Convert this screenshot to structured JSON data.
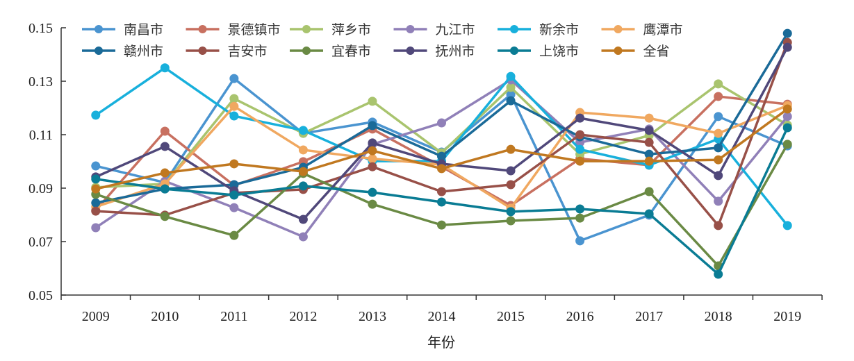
{
  "chart_data": {
    "type": "line",
    "title": "",
    "xlabel": "年份",
    "ylabel": "",
    "ylim": [
      0.05,
      0.15
    ],
    "yticks": [
      "0.05",
      "0.07",
      "0.09",
      "0.11",
      "0.13",
      "0.15"
    ],
    "categories": [
      "2009",
      "2010",
      "2011",
      "2012",
      "2013",
      "2014",
      "2015",
      "2016",
      "2017",
      "2018",
      "2019"
    ],
    "legend_position": "top",
    "series": [
      {
        "name": "南昌市",
        "color": "#4a94d0",
        "values": [
          0.0983,
          0.0921,
          0.131,
          0.1105,
          0.1147,
          0.1035,
          0.125,
          0.0703,
          0.0799,
          0.1168,
          0.1058
        ]
      },
      {
        "name": "景德镇市",
        "color": "#c87060",
        "values": [
          0.0817,
          0.1113,
          0.091,
          0.0999,
          0.1121,
          0.098,
          0.0835,
          0.101,
          0.0986,
          0.1243,
          0.1214
        ]
      },
      {
        "name": "萍乡市",
        "color": "#a9c46e",
        "values": [
          0.0903,
          0.0916,
          0.1235,
          0.1105,
          0.1225,
          0.1032,
          0.1277,
          0.1027,
          0.1097,
          0.129,
          0.1136
        ]
      },
      {
        "name": "九江市",
        "color": "#9080b8",
        "values": [
          0.0752,
          0.0926,
          0.0827,
          0.0718,
          0.1064,
          0.1144,
          0.1305,
          0.1071,
          0.1121,
          0.0851,
          0.1168
        ]
      },
      {
        "name": "新余市",
        "color": "#18b0dc",
        "values": [
          0.1173,
          0.135,
          0.117,
          0.1116,
          0.1001,
          0.1001,
          0.1318,
          0.1045,
          0.0986,
          0.1084,
          0.076
        ]
      },
      {
        "name": "鹰潭市",
        "color": "#f0a860",
        "values": [
          0.083,
          0.0916,
          0.1206,
          0.1043,
          0.101,
          0.0988,
          0.0825,
          0.1183,
          0.1162,
          0.1105,
          0.1209
        ]
      },
      {
        "name": "赣州市",
        "color": "#1a6a98",
        "values": [
          0.0845,
          0.0897,
          0.0913,
          0.0978,
          0.1134,
          0.1019,
          0.1227,
          0.1092,
          0.1027,
          0.1051,
          0.1479
        ]
      },
      {
        "name": "吉安市",
        "color": "#985048",
        "values": [
          0.0814,
          0.0799,
          0.0882,
          0.0895,
          0.098,
          0.0887,
          0.0913,
          0.11,
          0.1071,
          0.076,
          0.1445
        ]
      },
      {
        "name": "宜春市",
        "color": "#6a8a44",
        "values": [
          0.0877,
          0.0794,
          0.0723,
          0.0955,
          0.084,
          0.0762,
          0.0778,
          0.0788,
          0.0887,
          0.0609,
          0.1064
        ]
      },
      {
        "name": "抚州市",
        "color": "#50487a",
        "values": [
          0.0942,
          0.1056,
          0.089,
          0.0783,
          0.1069,
          0.0991,
          0.0965,
          0.1162,
          0.1116,
          0.0947,
          0.1427
        ]
      },
      {
        "name": "上饶市",
        "color": "#0a7c94",
        "values": [
          0.0934,
          0.0897,
          0.0874,
          0.0908,
          0.0884,
          0.0848,
          0.0812,
          0.0822,
          0.0804,
          0.0578,
          0.1126
        ]
      },
      {
        "name": "全省",
        "color": "#c07820",
        "values": [
          0.0897,
          0.0957,
          0.0991,
          0.0962,
          0.104,
          0.0973,
          0.1045,
          0.1001,
          0.1001,
          0.1006,
          0.1196
        ]
      }
    ]
  }
}
